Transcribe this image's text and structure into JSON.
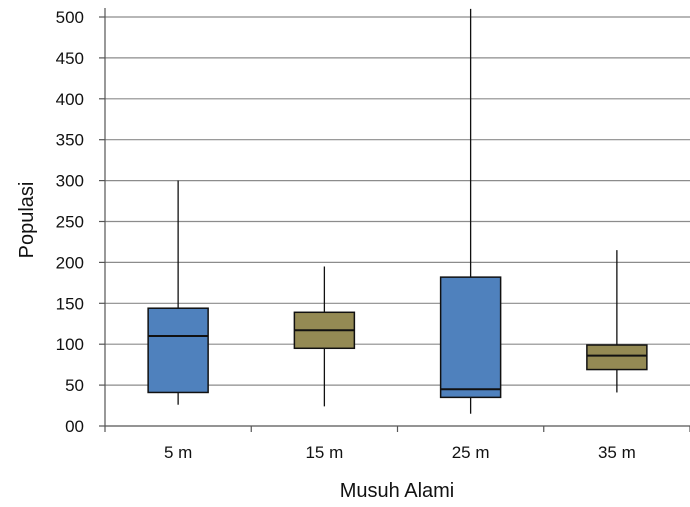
{
  "chart_data": {
    "type": "box",
    "xlabel": "Musuh Alami",
    "ylabel": "Populasi",
    "ylim": [
      0,
      500
    ],
    "yticks": [
      {
        "value": 0,
        "label": "00"
      },
      {
        "value": 50,
        "label": "50"
      },
      {
        "value": 100,
        "label": "100"
      },
      {
        "value": 150,
        "label": "150"
      },
      {
        "value": 200,
        "label": "200"
      },
      {
        "value": 250,
        "label": "250"
      },
      {
        "value": 300,
        "label": "300"
      },
      {
        "value": 350,
        "label": "350"
      },
      {
        "value": 400,
        "label": "400"
      },
      {
        "value": 450,
        "label": "450"
      },
      {
        "value": 500,
        "label": "500"
      }
    ],
    "grid": true,
    "categories": [
      "5 m",
      "15 m",
      "25 m",
      "35 m"
    ],
    "boxes": [
      {
        "category": "5 m",
        "min": 26,
        "q1": 41,
        "median": 110,
        "q3": 144,
        "max": 300,
        "color": "#4F81BD"
      },
      {
        "category": "15 m",
        "min": 24,
        "q1": 95,
        "median": 117,
        "q3": 139,
        "max": 195,
        "color": "#948A54"
      },
      {
        "category": "25 m",
        "min": 15,
        "q1": 35,
        "median": 45,
        "q3": 182,
        "max": 510,
        "color": "#4F81BD"
      },
      {
        "category": "35 m",
        "min": 41,
        "q1": 69,
        "median": 86,
        "q3": 99,
        "max": 215,
        "color": "#948A54"
      }
    ]
  }
}
